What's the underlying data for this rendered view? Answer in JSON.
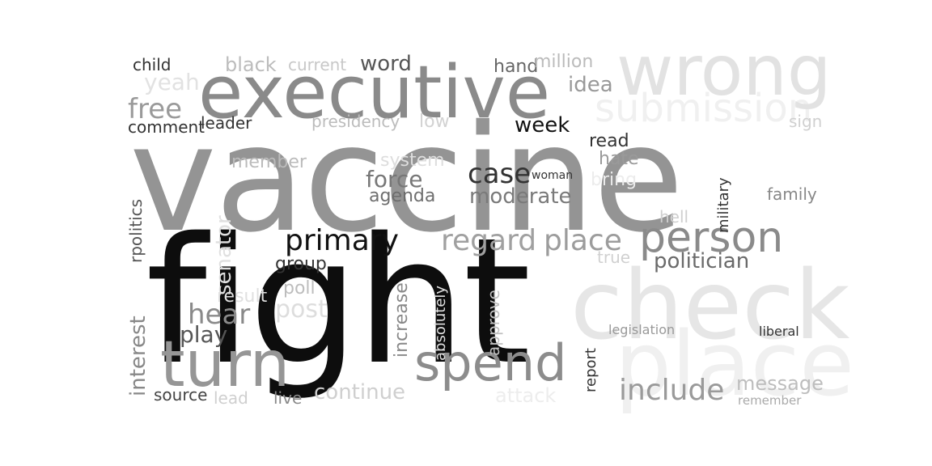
{
  "words": {
    "vaccine": "vaccine",
    "fight": "fight",
    "executive": "executive",
    "wrong": "wrong",
    "check": "check",
    "place_big": "place",
    "turn": "turn",
    "spend": "spend",
    "person": "person",
    "submission": "submission",
    "senator": "senator",
    "primary": "primary",
    "regard": "regard",
    "place": "place",
    "case": "case",
    "moderate": "moderate",
    "include": "include",
    "politician": "politician",
    "message": "message",
    "attack": "attack",
    "continue": "continue",
    "hear": "hear",
    "play": "play",
    "post": "post",
    "interest": "interest",
    "free": "free",
    "comment": "comment",
    "yeah": "yeah",
    "black": "black",
    "current": "current",
    "word": "word",
    "hand": "hand",
    "million": "million",
    "idea": "idea",
    "week": "week",
    "force": "force",
    "agenda": "agenda",
    "system": "system",
    "presidency": "presidency",
    "leader": "leader",
    "member": "member",
    "group": "group",
    "poll": "poll",
    "result": "result",
    "source": "source",
    "lead": "lead",
    "live": "live",
    "increase": "increase",
    "approve": "approve",
    "absolutely": "absolutely",
    "military": "military",
    "hell": "hell",
    "hate": "hate",
    "bring": "bring",
    "true": "true",
    "read": "read",
    "family": "family",
    "sign": "sign",
    "legislation": "legislation",
    "liberal": "liberal",
    "remember": "remember",
    "report": "report",
    "child": "child",
    "rpolitics": "rpolitics",
    "woman": "woman",
    "low": "low"
  }
}
